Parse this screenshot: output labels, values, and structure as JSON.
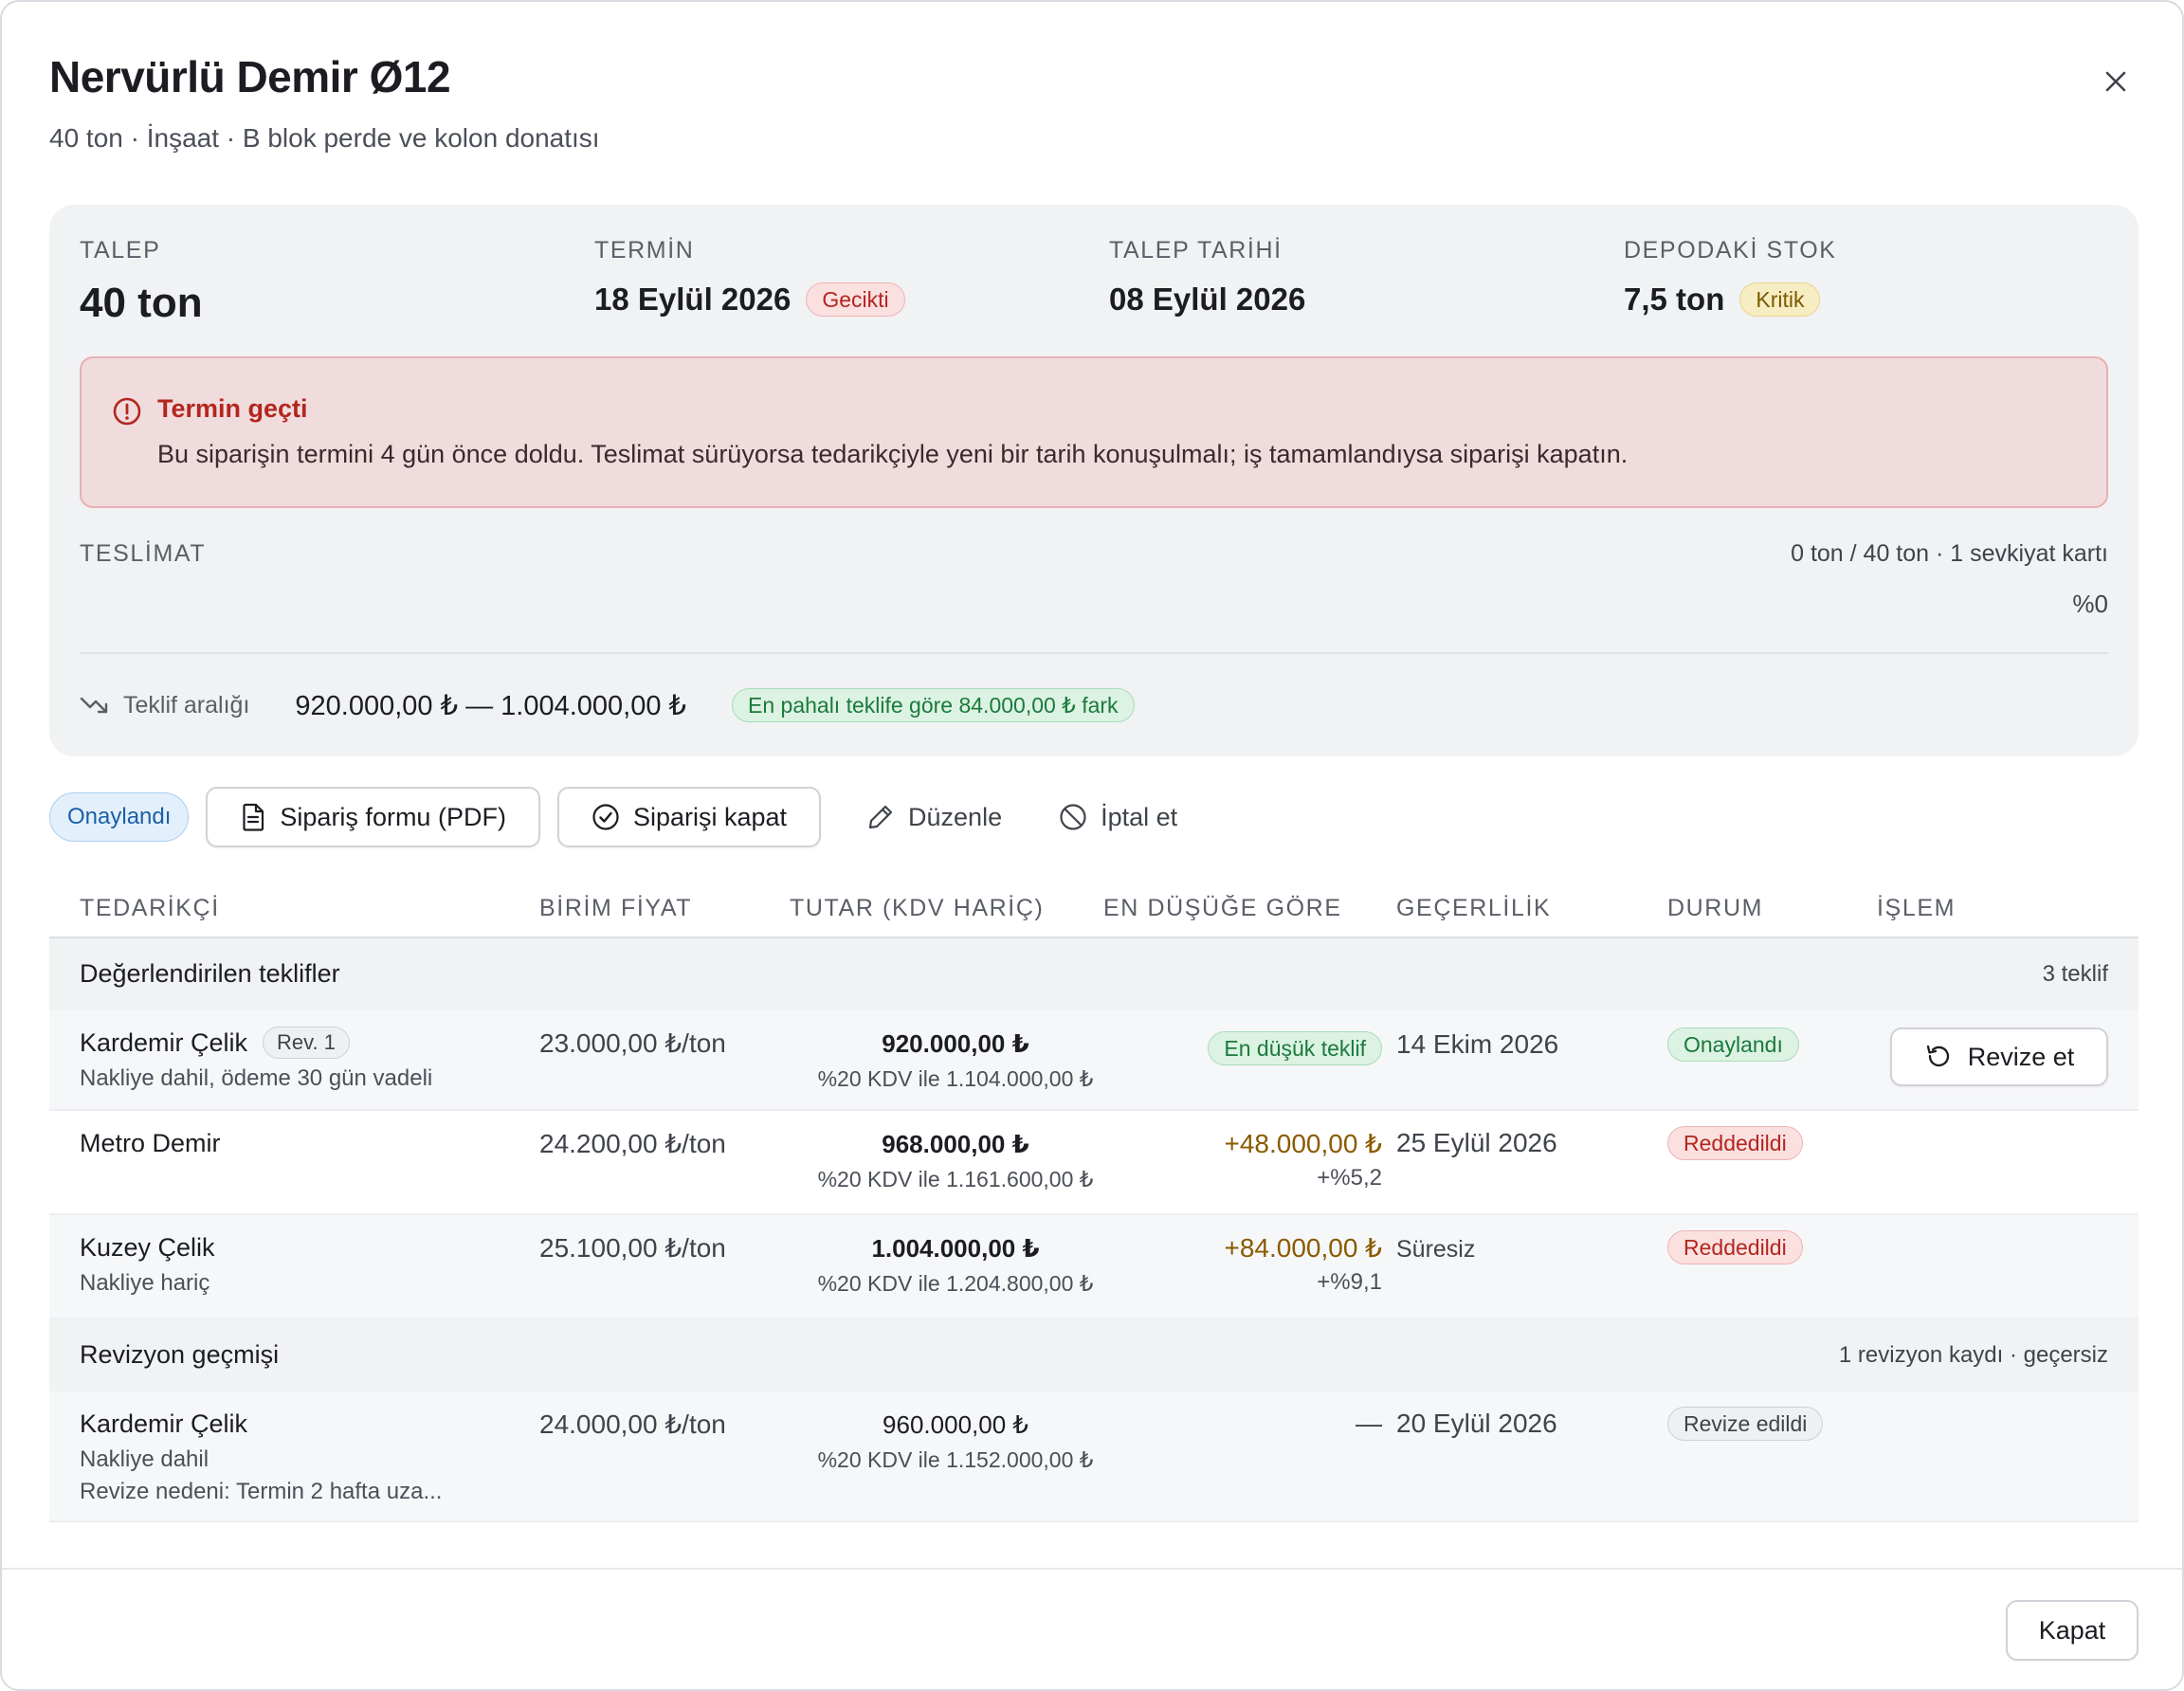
{
  "header": {
    "title": "Nervürlü Demir Ø12",
    "subtitle": "40 ton · İnşaat · B blok perde ve kolon donatısı"
  },
  "summary": {
    "request": {
      "label": "TALEP",
      "value": "40 ton"
    },
    "deadline": {
      "label": "TERMİN",
      "value": "18 Eylül 2026",
      "badge": "Gecikti"
    },
    "request_date": {
      "label": "TALEP TARİHİ",
      "value": "08 Eylül 2026"
    },
    "stock": {
      "label": "DEPODAKİ STOK",
      "value": "7,5 ton",
      "badge": "Kritik"
    },
    "alert": {
      "icon": "alert-circle-icon",
      "title": "Termin geçti",
      "text": "Bu siparişin termini 4 gün önce doldu. Teslimat sürüyorsa tedarikçiyle yeni bir tarih konuşulmalı; iş tamamlandıysa siparişi kapatın."
    },
    "delivery": {
      "label": "TESLİMAT",
      "info": "0 ton / 40 ton · 1 sevkiyat kartı",
      "percent_text": "%0",
      "progress": 0
    },
    "offer_range": {
      "icon": "trending-down-icon",
      "label": "Teklif aralığı",
      "value": "920.000,00 ₺ — 1.004.000,00 ₺",
      "badge": "En pahalı teklife göre 84.000,00 ₺ fark"
    }
  },
  "actions": {
    "status": "Onaylandı",
    "pdf_button": "Sipariş formu (PDF)",
    "close_order_button": "Siparişi kapat",
    "edit_button": "Düzenle",
    "cancel_button": "İptal et"
  },
  "table": {
    "columns": [
      "TEDARİKÇİ",
      "BİRİM FİYAT",
      "TUTAR (KDV HARİÇ)",
      "EN DÜŞÜĞE GÖRE",
      "GEÇERLİLİK",
      "DURUM",
      "İŞLEM"
    ],
    "evaluated": {
      "title": "Değerlendirilen teklifler",
      "count": "3 teklif",
      "rows": [
        {
          "supplier": "Kardemir Çelik",
          "revision": "Rev. 1",
          "note": "Nakliye dahil, ödeme 30 gün vadeli",
          "unit_price": "23.000,00 ₺/ton",
          "amount": "920.000,00 ₺",
          "amount_vat": "%20 KDV ile 1.104.000,00 ₺",
          "diff_badge": "En düşük teklif",
          "validity": "14 Ekim 2026",
          "status": "Onaylandı",
          "action": "Revize et"
        },
        {
          "supplier": "Metro Demir",
          "unit_price": "24.200,00 ₺/ton",
          "amount": "968.000,00 ₺",
          "amount_vat": "%20 KDV ile 1.161.600,00 ₺",
          "diff": "+48.000,00 ₺",
          "diff_pct": "+%5,2",
          "validity": "25 Eylül 2026",
          "status": "Reddedildi"
        },
        {
          "supplier": "Kuzey Çelik",
          "note": "Nakliye hariç",
          "unit_price": "25.100,00 ₺/ton",
          "amount": "1.004.000,00 ₺",
          "amount_vat": "%20 KDV ile 1.204.800,00 ₺",
          "diff": "+84.000,00 ₺",
          "diff_pct": "+%9,1",
          "validity": "Süresiz",
          "status": "Reddedildi"
        }
      ]
    },
    "history": {
      "title": "Revizyon geçmişi",
      "count": "1 revizyon kaydı · geçersiz",
      "rows": [
        {
          "supplier": "Kardemir Çelik",
          "note": "Nakliye dahil",
          "reason": "Revize nedeni: Termin 2 hafta uza...",
          "unit_price": "24.000,00 ₺/ton",
          "amount": "960.000,00 ₺",
          "amount_vat": "%20 KDV ile 1.152.000,00 ₺",
          "diff": "—",
          "validity": "20 Eylül 2026",
          "status": "Revize edildi"
        }
      ]
    }
  },
  "footer": {
    "close_button": "Kapat"
  },
  "colors": {
    "danger": "#b3261e",
    "success": "#1b7a3c",
    "warning": "#8a5a00",
    "info": "#1a5fa8"
  }
}
